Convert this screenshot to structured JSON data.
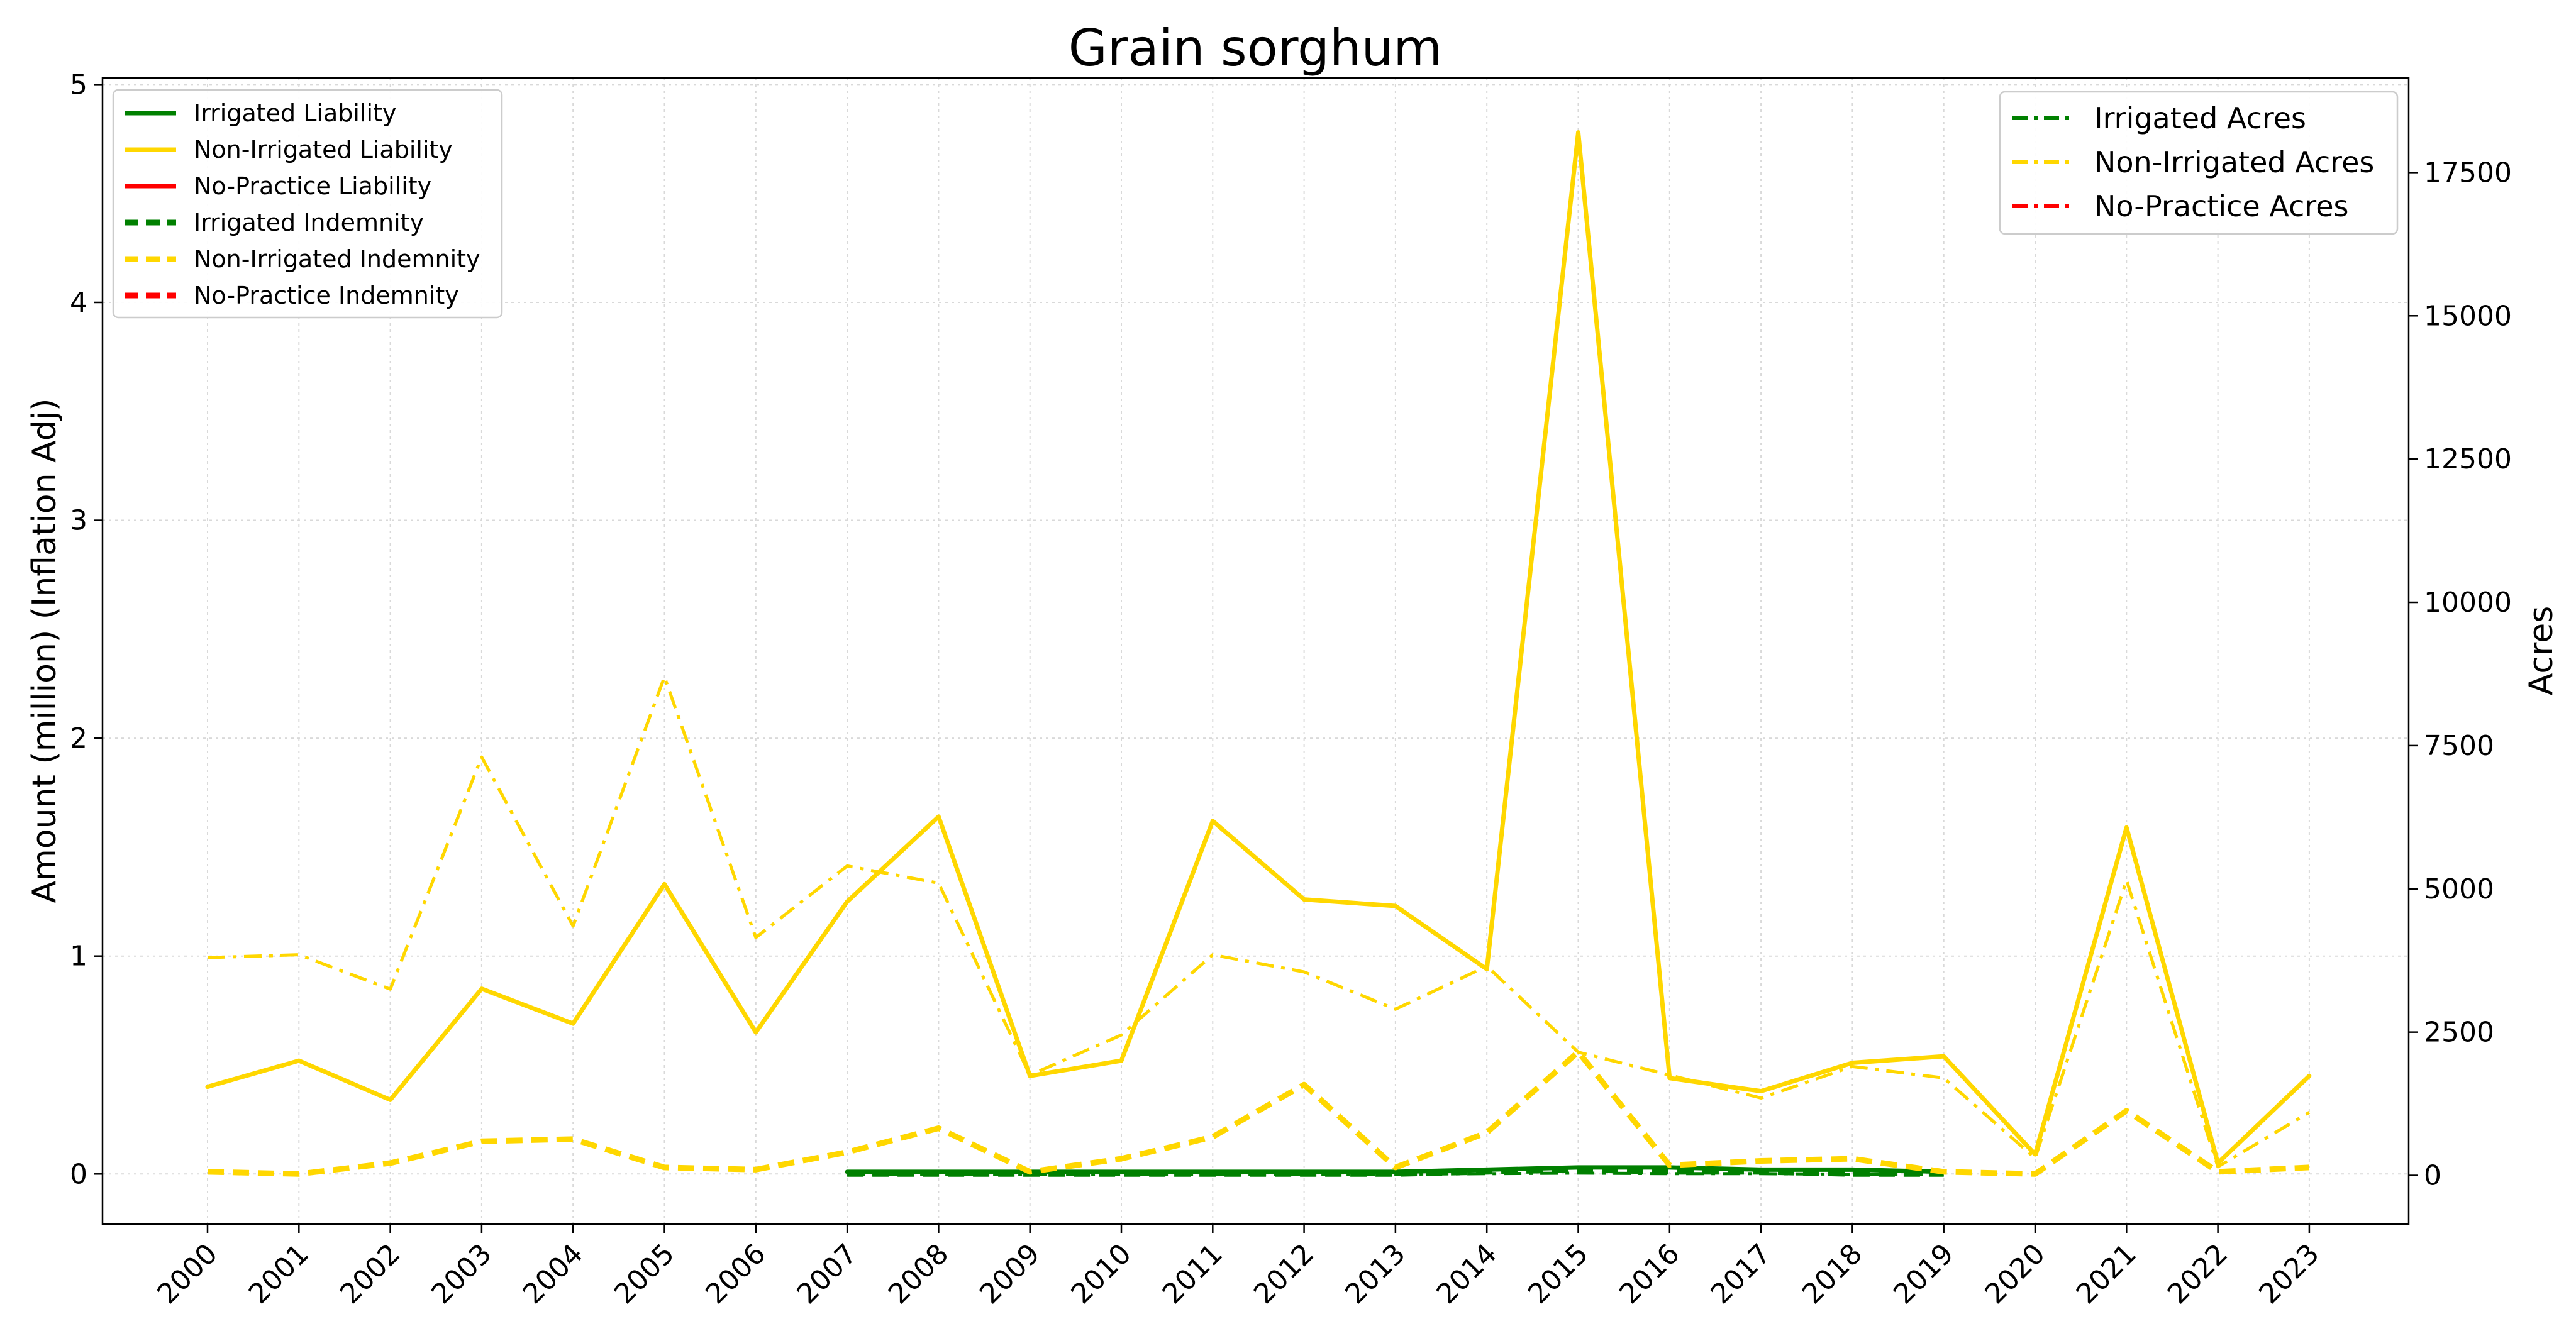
{
  "chart_data": {
    "type": "line",
    "title": "Grain sorghum",
    "xlabel": "",
    "ylabel": "Amount (million) (Inflation Adj)",
    "y2label": "Acres",
    "x": [
      "2000",
      "2001",
      "2002",
      "2003",
      "2004",
      "2005",
      "2006",
      "2007",
      "2008",
      "2009",
      "2010",
      "2011",
      "2012",
      "2013",
      "2014",
      "2015",
      "2016",
      "2017",
      "2018",
      "2019",
      "2020",
      "2021",
      "2022",
      "2023"
    ],
    "ylim": [
      -0.23,
      5.03
    ],
    "y2lim": [
      -850,
      19150
    ],
    "yticks": [
      "0",
      "1",
      "2",
      "3",
      "4",
      "5"
    ],
    "y2ticks": [
      "0",
      "2500",
      "5000",
      "7500",
      "10000",
      "12500",
      "15000",
      "17500"
    ],
    "grid": true,
    "legend_left_placement": "upper-left",
    "legend_right_placement": "upper-right",
    "series_left": [
      {
        "name": "Irrigated Liability",
        "color": "#008000",
        "style": "solid",
        "values": [
          null,
          null,
          null,
          null,
          null,
          null,
          null,
          0.01,
          0.01,
          0.01,
          0.01,
          0.01,
          0.01,
          0.01,
          0.02,
          0.03,
          0.03,
          0.02,
          0.02,
          0.01,
          null,
          null,
          null,
          null
        ]
      },
      {
        "name": "Non-Irrigated Liability",
        "color": "#FFD700",
        "style": "solid",
        "values": [
          0.4,
          0.52,
          0.34,
          0.85,
          0.69,
          1.33,
          0.65,
          1.25,
          1.64,
          0.45,
          0.52,
          1.62,
          1.26,
          1.23,
          0.94,
          4.78,
          0.44,
          0.38,
          0.51,
          0.54,
          0.09,
          1.59,
          0.05,
          0.45
        ]
      },
      {
        "name": "No-Practice Liability",
        "color": "#FF0000",
        "style": "solid",
        "values": [
          null,
          null,
          null,
          null,
          null,
          null,
          null,
          null,
          null,
          null,
          null,
          null,
          null,
          null,
          null,
          null,
          null,
          null,
          null,
          null,
          null,
          null,
          null,
          null
        ]
      },
      {
        "name": "Irrigated Indemnity",
        "color": "#008000",
        "style": "dashed",
        "values": [
          null,
          null,
          null,
          null,
          null,
          null,
          null,
          0.0,
          0.0,
          0.0,
          0.0,
          0.0,
          0.0,
          0.0,
          0.01,
          0.02,
          0.01,
          0.01,
          0.0,
          0.0,
          null,
          null,
          null,
          null
        ]
      },
      {
        "name": "Non-Irrigated Indemnity",
        "color": "#FFD700",
        "style": "dashed",
        "values": [
          0.01,
          0.0,
          0.05,
          0.15,
          0.16,
          0.03,
          0.02,
          0.1,
          0.21,
          0.01,
          0.07,
          0.17,
          0.41,
          0.03,
          0.19,
          0.56,
          0.04,
          0.06,
          0.07,
          0.01,
          0.0,
          0.29,
          0.01,
          0.03
        ]
      },
      {
        "name": "No-Practice Indemnity",
        "color": "#FF0000",
        "style": "dashed",
        "values": [
          null,
          null,
          null,
          null,
          null,
          null,
          null,
          null,
          null,
          null,
          null,
          null,
          null,
          null,
          null,
          null,
          null,
          null,
          null,
          null,
          null,
          null,
          null,
          null
        ]
      }
    ],
    "series_right": [
      {
        "name": "Irrigated Acres",
        "color": "#008000",
        "style": "dashdot",
        "values": [
          null,
          null,
          null,
          null,
          null,
          null,
          null,
          20,
          20,
          20,
          20,
          20,
          20,
          20,
          30,
          40,
          30,
          30,
          20,
          20,
          null,
          null,
          null,
          null
        ]
      },
      {
        "name": "Non-Irrigated Acres",
        "color": "#FFD700",
        "style": "dashdot",
        "values": [
          3800,
          3850,
          3250,
          7300,
          4350,
          8700,
          4150,
          5400,
          5100,
          1750,
          2450,
          3850,
          3550,
          2900,
          3650,
          2150,
          1750,
          1350,
          1900,
          1700,
          300,
          5150,
          150,
          1100
        ]
      },
      {
        "name": "No-Practice Acres",
        "color": "#FF0000",
        "style": "dashdot",
        "values": [
          null,
          null,
          null,
          null,
          null,
          null,
          null,
          null,
          null,
          null,
          null,
          null,
          null,
          null,
          null,
          null,
          null,
          null,
          null,
          null,
          null,
          null,
          null,
          null
        ]
      }
    ]
  }
}
